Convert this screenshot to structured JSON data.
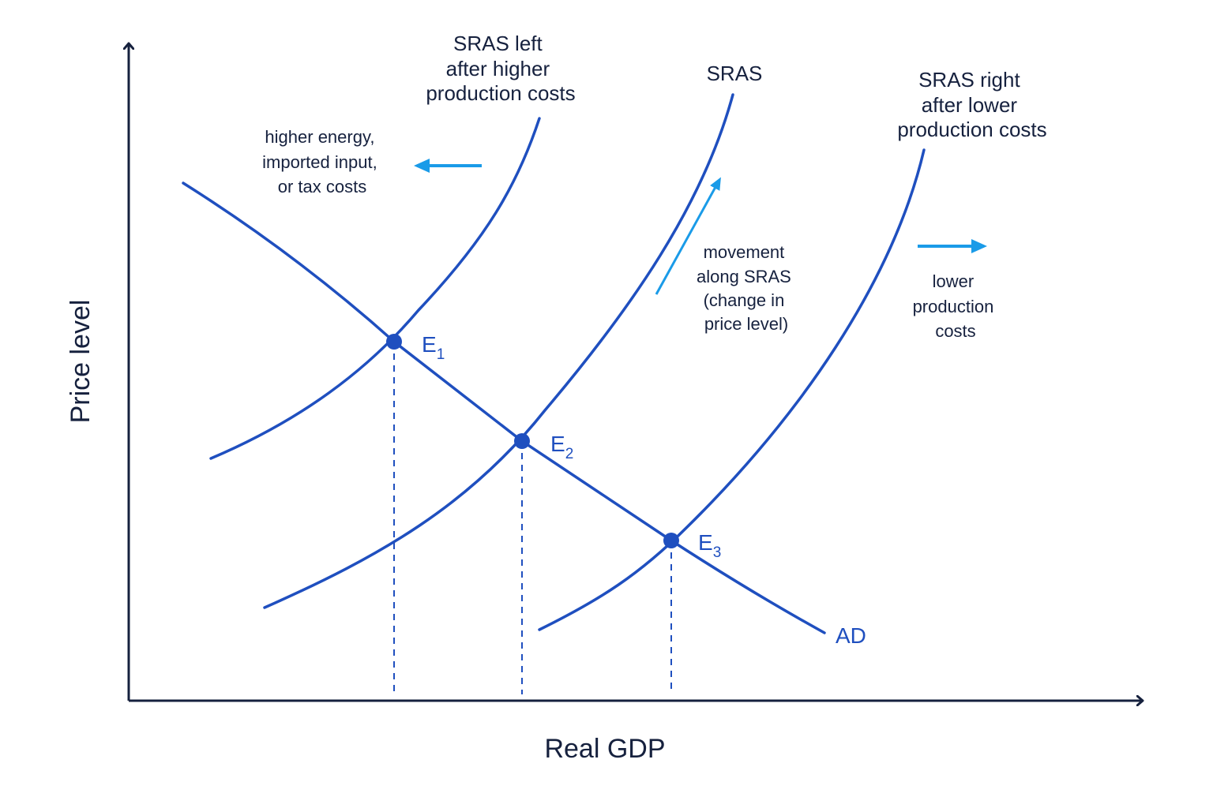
{
  "colors": {
    "curve": "#1f4fbf",
    "axis": "#16213e",
    "arrow": "#1a9be8",
    "text": "#16213e"
  },
  "axes": {
    "y_label": "Price level",
    "x_label": "Real GDP"
  },
  "curves": {
    "sras_left": {
      "label_lines": [
        "SRAS left",
        "after higher",
        "production costs"
      ]
    },
    "sras": {
      "label": "SRAS"
    },
    "sras_right": {
      "label_lines": [
        "SRAS right",
        "after lower",
        "production costs"
      ]
    },
    "ad": {
      "label": "AD"
    }
  },
  "equilibria": [
    {
      "label": "E",
      "sub": "1"
    },
    {
      "label": "E",
      "sub": "2"
    },
    {
      "label": "E",
      "sub": "3"
    }
  ],
  "annotations": {
    "left_shift": {
      "lines": [
        "higher energy,",
        "imported input,",
        "or tax costs"
      ],
      "arrow_icon": "arrow-left-icon"
    },
    "movement": {
      "lines": [
        "movement",
        "along SRAS",
        "(change in",
        "price level)"
      ],
      "arrow_icon": "arrow-up-right-icon"
    },
    "right_shift": {
      "lines": [
        "lower",
        "production",
        "costs"
      ],
      "arrow_icon": "arrow-right-icon"
    }
  }
}
